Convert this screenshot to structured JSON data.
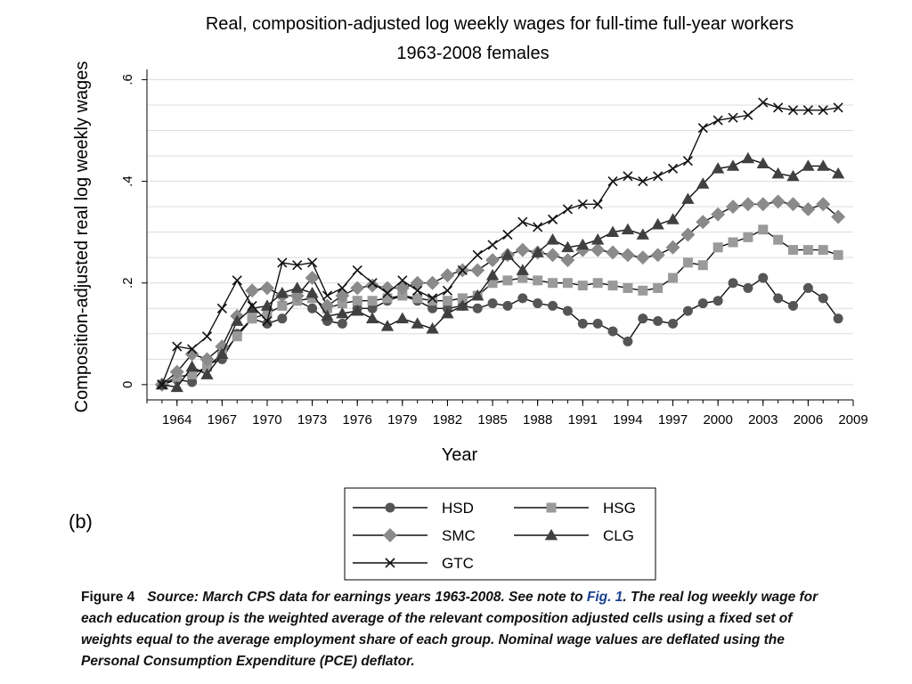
{
  "chart_data": {
    "type": "line",
    "title": "Real, composition-adjusted log weekly wages for full-time full-year workers",
    "subtitle": "1963-2008 females",
    "xlabel": "Year",
    "ylabel": "Composition-adjusted real log weekly wages",
    "xlim": [
      1962,
      2009
    ],
    "ylim": [
      -0.03,
      0.62
    ],
    "xticks": [
      1964,
      1967,
      1970,
      1973,
      1976,
      1979,
      1982,
      1985,
      1988,
      1991,
      1994,
      1997,
      2000,
      2003,
      2006,
      2009
    ],
    "yticks": [
      0,
      0.2,
      0.4,
      0.6
    ],
    "ytick_labels": [
      "0",
      ".2",
      ".4",
      ".6"
    ],
    "grid": true,
    "legend_position": "bottom",
    "x": [
      1963,
      1964,
      1965,
      1966,
      1967,
      1968,
      1969,
      1970,
      1971,
      1972,
      1973,
      1974,
      1975,
      1976,
      1977,
      1978,
      1979,
      1980,
      1981,
      1982,
      1983,
      1984,
      1985,
      1986,
      1987,
      1988,
      1989,
      1990,
      1991,
      1992,
      1993,
      1994,
      1995,
      1996,
      1997,
      1998,
      1999,
      2000,
      2001,
      2002,
      2003,
      2004,
      2005,
      2006,
      2007,
      2008
    ],
    "series": [
      {
        "name": "HSD",
        "marker": "circle",
        "color": "#555555",
        "values": [
          0,
          0.01,
          0.005,
          0.04,
          0.05,
          0.1,
          0.13,
          0.12,
          0.13,
          0.165,
          0.15,
          0.125,
          0.12,
          0.15,
          0.15,
          0.165,
          0.175,
          0.165,
          0.15,
          0.15,
          0.155,
          0.15,
          0.16,
          0.155,
          0.17,
          0.16,
          0.155,
          0.145,
          0.12,
          0.12,
          0.105,
          0.085,
          0.13,
          0.125,
          0.12,
          0.145,
          0.16,
          0.165,
          0.2,
          0.19,
          0.21,
          0.17,
          0.155,
          0.19,
          0.17,
          0.13
        ]
      },
      {
        "name": "HSG",
        "marker": "square",
        "color": "#9a9a9a",
        "values": [
          0,
          0.015,
          0.02,
          0.035,
          0.06,
          0.095,
          0.13,
          0.14,
          0.155,
          0.165,
          0.17,
          0.15,
          0.16,
          0.165,
          0.165,
          0.17,
          0.175,
          0.17,
          0.165,
          0.165,
          0.17,
          0.175,
          0.2,
          0.205,
          0.21,
          0.205,
          0.2,
          0.2,
          0.195,
          0.2,
          0.195,
          0.19,
          0.185,
          0.19,
          0.21,
          0.24,
          0.235,
          0.27,
          0.28,
          0.29,
          0.305,
          0.285,
          0.265,
          0.265,
          0.265,
          0.255
        ]
      },
      {
        "name": "SMC",
        "marker": "diamond",
        "color": "#8a8a8a",
        "values": [
          0,
          0.025,
          0.06,
          0.05,
          0.075,
          0.135,
          0.185,
          0.19,
          0.175,
          0.175,
          0.21,
          0.155,
          0.175,
          0.19,
          0.195,
          0.19,
          0.19,
          0.2,
          0.2,
          0.215,
          0.225,
          0.225,
          0.245,
          0.255,
          0.265,
          0.26,
          0.255,
          0.245,
          0.265,
          0.265,
          0.26,
          0.255,
          0.25,
          0.255,
          0.27,
          0.295,
          0.32,
          0.335,
          0.35,
          0.355,
          0.355,
          0.36,
          0.355,
          0.345,
          0.355,
          0.33
        ]
      },
      {
        "name": "CLG",
        "marker": "triangle",
        "color": "#404040",
        "values": [
          0,
          -0.005,
          0.035,
          0.02,
          0.06,
          0.125,
          0.15,
          0.155,
          0.18,
          0.19,
          0.18,
          0.135,
          0.14,
          0.145,
          0.13,
          0.115,
          0.13,
          0.12,
          0.11,
          0.14,
          0.155,
          0.175,
          0.215,
          0.255,
          0.225,
          0.26,
          0.285,
          0.27,
          0.275,
          0.285,
          0.3,
          0.305,
          0.295,
          0.315,
          0.325,
          0.365,
          0.395,
          0.425,
          0.43,
          0.445,
          0.435,
          0.415,
          0.41,
          0.43,
          0.43,
          0.415
        ]
      },
      {
        "name": "GTC",
        "marker": "x",
        "color": "#111111",
        "values": [
          0,
          0.075,
          0.07,
          0.095,
          0.15,
          0.205,
          0.155,
          0.125,
          0.24,
          0.235,
          0.24,
          0.175,
          0.19,
          0.225,
          0.2,
          0.18,
          0.205,
          0.185,
          0.17,
          0.185,
          0.225,
          0.255,
          0.275,
          0.295,
          0.32,
          0.31,
          0.325,
          0.345,
          0.355,
          0.355,
          0.4,
          0.41,
          0.4,
          0.41,
          0.425,
          0.44,
          0.505,
          0.52,
          0.525,
          0.53,
          0.555,
          0.545,
          0.54,
          0.54,
          0.54,
          0.545
        ]
      }
    ]
  },
  "panel_label": "(b)",
  "caption": {
    "label": "Figure 4",
    "text_before_link": "Source: March CPS data for earnings years 1963-2008. See note to ",
    "link_text": "Fig. 1",
    "text_after_link": ". The real log weekly wage for each education group is the weighted average of the relevant composition adjusted cells using a fixed set of weights equal to the average employment share of each group. Nominal wage values are deflated using the Personal Consumption Expenditure (PCE) deflator."
  }
}
